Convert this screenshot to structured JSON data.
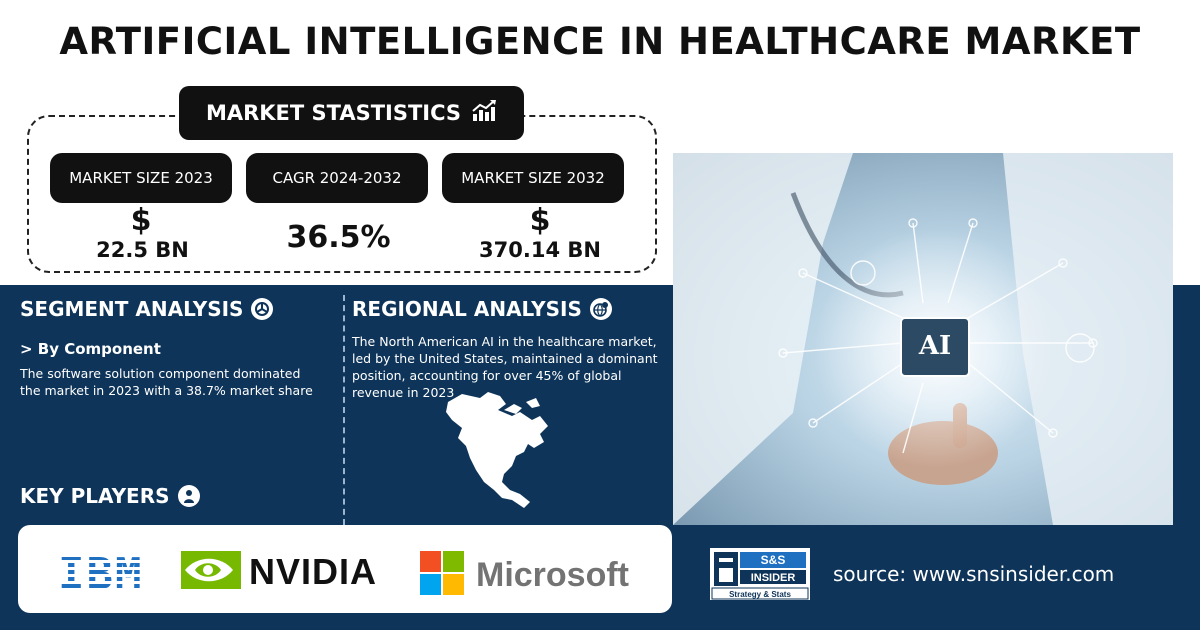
{
  "title": "ARTIFICIAL INTELLIGENCE IN HEALTHCARE MARKET",
  "stats": {
    "header": "MARKET STASTISTICS",
    "header_icon": "growth-chart-icon",
    "items": [
      {
        "label": "MARKET SIZE 2023",
        "symbol": "$",
        "value": "22.5 BN"
      },
      {
        "label": "CAGR 2024-2032",
        "value": "36.5%"
      },
      {
        "label": "MARKET SIZE 2032",
        "symbol": "$",
        "value": "370.14 BN"
      }
    ]
  },
  "segment": {
    "title": "SEGMENT ANALYSIS",
    "icon": "pie-chart-icon",
    "subheading": "> By Component",
    "text": "The software solution component dominated the market in 2023 with a 38.7% market share"
  },
  "regional": {
    "title": "REGIONAL ANALYSIS",
    "icon": "globe-pin-icon",
    "text": "The North American AI in the healthcare market, led by the United States, maintained a dominant position, accounting for over 45% of global revenue in 2023",
    "map": "north-america-map"
  },
  "hero": {
    "chip_label": "AI"
  },
  "players": {
    "title": "KEY PLAYERS",
    "icon": "person-icon",
    "logos": [
      {
        "name": "IBM",
        "color": "#1f70c1"
      },
      {
        "name": "NVIDIA",
        "color": "#111111",
        "accent": "#76b900"
      },
      {
        "name": "Microsoft",
        "color": "#737373"
      }
    ]
  },
  "brand": {
    "line1": "S&S",
    "line2": "INSIDER",
    "line3": "Strategy & Stats"
  },
  "source": "source: www.snsinsider.com",
  "colors": {
    "dark_panel": "#0e3459",
    "black": "#111111",
    "white": "#ffffff"
  }
}
